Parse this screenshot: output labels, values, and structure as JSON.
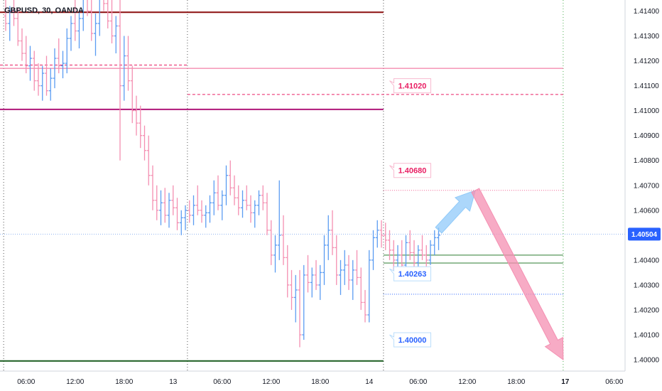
{
  "symbol_title": "GBPUSD, 30, OANDA",
  "chart_data": {
    "type": "ohlc",
    "title": "GBPUSD, 30, OANDA",
    "ylim": [
      1.3995,
      1.4155
    ],
    "x_ticks": [
      {
        "label": "06:00",
        "t": 5,
        "bold": false
      },
      {
        "label": "12:00",
        "t": 17,
        "bold": false
      },
      {
        "label": "18:00",
        "t": 29,
        "bold": false
      },
      {
        "label": "13",
        "t": 41,
        "bold": false
      },
      {
        "label": "06:00",
        "t": 53,
        "bold": false
      },
      {
        "label": "12:00",
        "t": 65,
        "bold": false
      },
      {
        "label": "18:00",
        "t": 77,
        "bold": false
      },
      {
        "label": "14",
        "t": 89,
        "bold": false
      },
      {
        "label": "06:00",
        "t": 101,
        "bold": false
      },
      {
        "label": "12:00",
        "t": 113,
        "bold": false
      },
      {
        "label": "18:00",
        "t": 125,
        "bold": false
      },
      {
        "label": "17",
        "t": 137,
        "bold": true
      },
      {
        "label": "06:00",
        "t": 149,
        "bold": false
      }
    ],
    "y_ticks": [
      "1.41400",
      "1.41300",
      "1.41200",
      "1.41100",
      "1.41000",
      "1.40900",
      "1.40800",
      "1.40700",
      "1.40600",
      "1.40500",
      "1.40400",
      "1.40300",
      "1.40200",
      "1.40100",
      "1.40000"
    ],
    "current_price": "1.40504",
    "session_breaks_t": [
      -0.5,
      44.5,
      92.5,
      136.5
    ],
    "colors": {
      "up": "#5b9cf2",
      "down": "#f48fb1",
      "current": "#2962ff"
    },
    "levels": [
      {
        "name": "resistance-dark-red",
        "price": 1.41395,
        "color": "#8b0e0e",
        "from_t": -2,
        "to_t": 92.5,
        "style": "solid",
        "width": 2
      },
      {
        "name": "pink-line-upper",
        "price": 1.4117,
        "color": "#f06292",
        "from_t": -2,
        "to_t": 136.5,
        "style": "solid",
        "width": 1
      },
      {
        "name": "pink-dashed-left",
        "price": 1.41183,
        "color": "#e91e63",
        "from_t": -2,
        "to_t": 44.5,
        "style": "dashed",
        "width": 1
      },
      {
        "name": "pink-dashed-right",
        "price": 1.41065,
        "color": "#e91e63",
        "from_t": 44.5,
        "to_t": 136.5,
        "style": "dashed",
        "width": 1
      },
      {
        "name": "magenta-level",
        "price": 1.41005,
        "color": "#b0177a",
        "from_t": -2,
        "to_t": 92.5,
        "style": "solid",
        "width": 2
      },
      {
        "name": "target-level-1",
        "price": 1.4068,
        "color": "#f06292",
        "from_t": 92.5,
        "to_t": 136.5,
        "style": "dotted",
        "width": 1
      },
      {
        "name": "green-level-upper",
        "price": 1.4042,
        "color": "#2e7d32",
        "from_t": 92.5,
        "to_t": 136.5,
        "style": "solid",
        "width": 1
      },
      {
        "name": "green-level-lower",
        "price": 1.40388,
        "color": "#2e7d32",
        "from_t": 92.5,
        "to_t": 136.5,
        "style": "solid",
        "width": 1
      },
      {
        "name": "support-level-blue",
        "price": 1.40263,
        "color": "#2962ff",
        "from_t": 92.5,
        "to_t": 136.5,
        "style": "dotted",
        "width": 1
      },
      {
        "name": "support-green-thick",
        "price": 1.39995,
        "color": "#1b5e20",
        "from_t": -2,
        "to_t": 92.5,
        "style": "solid",
        "width": 2
      }
    ],
    "callouts": [
      {
        "label": "1.41020",
        "price": 1.411,
        "t": 94,
        "color": "#e91e63",
        "border": "#f8bbd0"
      },
      {
        "label": "1.40680",
        "price": 1.4076,
        "t": 94,
        "color": "#e91e63",
        "border": "#f8bbd0"
      },
      {
        "label": "1.40263",
        "price": 1.40345,
        "t": 94,
        "color": "#2962ff",
        "border": "#bbdefb"
      },
      {
        "label": "1.40000",
        "price": 1.4008,
        "t": 94,
        "color": "#2962ff",
        "border": "#bbdefb"
      }
    ],
    "arrows": [
      {
        "name": "up-arrow-blue",
        "from": [
          106,
          1.4052
        ],
        "to": [
          115,
          1.4068
        ],
        "color": "#90caf9"
      },
      {
        "name": "down-arrow-pink",
        "from": [
          115,
          1.4068
        ],
        "to": [
          136.5,
          1.4
        ],
        "color": "#f48fb1"
      }
    ],
    "bars": [
      [
        1.4138,
        1.4146,
        1.4132,
        1.4135
      ],
      [
        1.4135,
        1.4142,
        1.4128,
        1.414
      ],
      [
        1.414,
        1.4145,
        1.4134,
        1.4137
      ],
      [
        1.4137,
        1.4141,
        1.4126,
        1.4128
      ],
      [
        1.4128,
        1.4133,
        1.412,
        1.4123
      ],
      [
        1.4123,
        1.413,
        1.4115,
        1.4118
      ],
      [
        1.4118,
        1.4126,
        1.4112,
        1.4121
      ],
      [
        1.4121,
        1.4124,
        1.4108,
        1.4112
      ],
      [
        1.4112,
        1.4119,
        1.4106,
        1.411
      ],
      [
        1.411,
        1.4118,
        1.4104,
        1.4115
      ],
      [
        1.4115,
        1.4122,
        1.4106,
        1.4108
      ],
      [
        1.4108,
        1.4117,
        1.4104,
        1.4113
      ],
      [
        1.4113,
        1.4125,
        1.4109,
        1.4121
      ],
      [
        1.4121,
        1.4129,
        1.4115,
        1.4118
      ],
      [
        1.4118,
        1.4124,
        1.4113,
        1.4119
      ],
      [
        1.4119,
        1.4133,
        1.4115,
        1.4129
      ],
      [
        1.4129,
        1.4138,
        1.4124,
        1.4135
      ],
      [
        1.4135,
        1.4145,
        1.4128,
        1.4132
      ],
      [
        1.4132,
        1.414,
        1.4125,
        1.4137
      ],
      [
        1.4137,
        1.415,
        1.4132,
        1.4145
      ],
      [
        1.4145,
        1.4153,
        1.4138,
        1.414
      ],
      [
        1.414,
        1.4148,
        1.4128,
        1.4131
      ],
      [
        1.4131,
        1.4139,
        1.4122,
        1.4135
      ],
      [
        1.4135,
        1.415,
        1.413,
        1.4146
      ],
      [
        1.4146,
        1.416,
        1.414,
        1.4143
      ],
      [
        1.4143,
        1.415,
        1.4133,
        1.4136
      ],
      [
        1.4136,
        1.4145,
        1.4127,
        1.413
      ],
      [
        1.413,
        1.4138,
        1.4123,
        1.4134
      ],
      [
        1.4134,
        1.416,
        1.408,
        1.411
      ],
      [
        1.411,
        1.413,
        1.4104,
        1.4122
      ],
      [
        1.4122,
        1.413,
        1.4108,
        1.4112
      ],
      [
        1.4112,
        1.4118,
        1.4095,
        1.41
      ],
      [
        1.41,
        1.4106,
        1.409,
        1.4095
      ],
      [
        1.4095,
        1.4102,
        1.4085,
        1.409
      ],
      [
        1.409,
        1.4094,
        1.408,
        1.4084
      ],
      [
        1.4084,
        1.409,
        1.407,
        1.4074
      ],
      [
        1.4074,
        1.4078,
        1.406,
        1.4064
      ],
      [
        1.4064,
        1.407,
        1.4056,
        1.406
      ],
      [
        1.406,
        1.4068,
        1.4054,
        1.4063
      ],
      [
        1.4063,
        1.4069,
        1.4055,
        1.4058
      ],
      [
        1.4058,
        1.4067,
        1.4053,
        1.4064
      ],
      [
        1.4064,
        1.407,
        1.4058,
        1.4061
      ],
      [
        1.4061,
        1.4065,
        1.4052,
        1.4055
      ],
      [
        1.4055,
        1.406,
        1.405,
        1.4057
      ],
      [
        1.4057,
        1.4062,
        1.4052,
        1.406
      ],
      [
        1.406,
        1.4064,
        1.4055,
        1.4058
      ],
      [
        1.4058,
        1.4066,
        1.4054,
        1.4062
      ],
      [
        1.4062,
        1.407,
        1.4058,
        1.406
      ],
      [
        1.406,
        1.4064,
        1.4055,
        1.4058
      ],
      [
        1.4058,
        1.4062,
        1.4053,
        1.4059
      ],
      [
        1.4059,
        1.4066,
        1.4055,
        1.4063
      ],
      [
        1.4063,
        1.4072,
        1.4058,
        1.4067
      ],
      [
        1.4067,
        1.4074,
        1.406,
        1.4062
      ],
      [
        1.4062,
        1.4068,
        1.4056,
        1.4066
      ],
      [
        1.4066,
        1.4078,
        1.4062,
        1.4074
      ],
      [
        1.4074,
        1.408,
        1.4066,
        1.4069
      ],
      [
        1.4069,
        1.4074,
        1.4062,
        1.4065
      ],
      [
        1.4065,
        1.407,
        1.4058,
        1.4061
      ],
      [
        1.4061,
        1.4068,
        1.4057,
        1.4064
      ],
      [
        1.4064,
        1.407,
        1.406,
        1.4062
      ],
      [
        1.4062,
        1.4066,
        1.4055,
        1.4059
      ],
      [
        1.4059,
        1.4064,
        1.4053,
        1.4062
      ],
      [
        1.4062,
        1.4068,
        1.4058,
        1.4066
      ],
      [
        1.4066,
        1.407,
        1.406,
        1.4063
      ],
      [
        1.4063,
        1.4067,
        1.405,
        1.4052
      ],
      [
        1.4052,
        1.4056,
        1.4038,
        1.4042
      ],
      [
        1.4042,
        1.405,
        1.4035,
        1.4046
      ],
      [
        1.4046,
        1.4072,
        1.404,
        1.405
      ],
      [
        1.405,
        1.4058,
        1.4038,
        1.4041
      ],
      [
        1.4041,
        1.4046,
        1.4025,
        1.403
      ],
      [
        1.403,
        1.4036,
        1.402,
        1.4025
      ],
      [
        1.4025,
        1.4034,
        1.4015,
        1.4028
      ],
      [
        1.4028,
        1.4036,
        1.4005,
        1.401
      ],
      [
        1.401,
        1.4038,
        1.4008,
        1.4034
      ],
      [
        1.4034,
        1.4042,
        1.4027,
        1.4031
      ],
      [
        1.4031,
        1.4037,
        1.4025,
        1.4034
      ],
      [
        1.4034,
        1.404,
        1.4028,
        1.403
      ],
      [
        1.403,
        1.4038,
        1.4024,
        1.4035
      ],
      [
        1.4035,
        1.405,
        1.403,
        1.4046
      ],
      [
        1.4046,
        1.4058,
        1.404,
        1.4052
      ],
      [
        1.4052,
        1.406,
        1.4042,
        1.4045
      ],
      [
        1.4045,
        1.405,
        1.403,
        1.4034
      ],
      [
        1.4034,
        1.404,
        1.4026,
        1.4036
      ],
      [
        1.4036,
        1.4044,
        1.403,
        1.4038
      ],
      [
        1.4038,
        1.4042,
        1.4028,
        1.4032
      ],
      [
        1.4032,
        1.404,
        1.4024,
        1.4036
      ],
      [
        1.4036,
        1.4044,
        1.403,
        1.4033
      ],
      [
        1.4033,
        1.4037,
        1.402,
        1.4023
      ],
      [
        1.4023,
        1.4028,
        1.4015,
        1.4018
      ],
      [
        1.4018,
        1.4044,
        1.4015,
        1.404
      ],
      [
        1.404,
        1.4052,
        1.4036,
        1.4049
      ],
      [
        1.4049,
        1.4056,
        1.4045,
        1.4052
      ],
      [
        1.4052,
        1.4056,
        1.4045,
        1.405
      ],
      [
        1.405,
        1.4055,
        1.4044,
        1.4048
      ],
      [
        1.4048,
        1.4052,
        1.404,
        1.4044
      ],
      [
        1.4044,
        1.4048,
        1.4036,
        1.404
      ],
      [
        1.404,
        1.4046,
        1.4034,
        1.4042
      ],
      [
        1.4042,
        1.4048,
        1.4036,
        1.4038
      ],
      [
        1.4038,
        1.405,
        1.4034,
        1.4047
      ],
      [
        1.4047,
        1.4052,
        1.404,
        1.4043
      ],
      [
        1.4043,
        1.4048,
        1.4036,
        1.4039
      ],
      [
        1.4039,
        1.4046,
        1.4036,
        1.4044
      ],
      [
        1.4044,
        1.405,
        1.404,
        1.4042
      ],
      [
        1.4042,
        1.4046,
        1.4036,
        1.404
      ],
      [
        1.404,
        1.4048,
        1.4038,
        1.4046
      ],
      [
        1.4046,
        1.4052,
        1.4042,
        1.4049
      ],
      [
        1.4049,
        1.4053,
        1.4044,
        1.405
      ]
    ]
  }
}
